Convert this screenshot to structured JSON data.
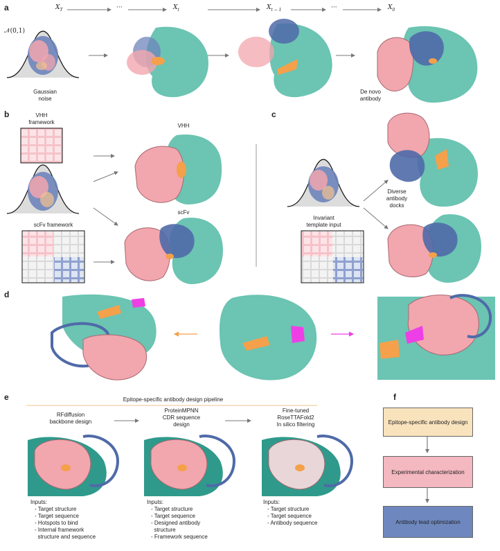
{
  "panels": {
    "a": "a",
    "b": "b",
    "c": "c",
    "d": "d",
    "e": "e",
    "f": "f"
  },
  "panel_a": {
    "x_labels": [
      {
        "base": "X",
        "sub": "T"
      },
      {
        "base": "···",
        "sub": ""
      },
      {
        "base": "X",
        "sub": "t"
      },
      {
        "base": "X",
        "sub": "t − 1"
      },
      {
        "base": "···",
        "sub": ""
      },
      {
        "base": "X",
        "sub": "0"
      }
    ],
    "normal_label": "𝒩(0,1)",
    "gaussian_caption": [
      "Gaussian",
      "noise"
    ],
    "antibody_caption": [
      "De novo",
      "antibody"
    ]
  },
  "panel_b": {
    "vhh_framework": [
      "VHH",
      "framework"
    ],
    "scfv_framework": "scFv framework",
    "vhh_title": "VHH",
    "scfv_title": "scFv"
  },
  "panel_c": {
    "template_caption": [
      "Invariant",
      "template input"
    ],
    "docks_caption": [
      "Diverse",
      "antibody",
      "docks"
    ]
  },
  "panel_e": {
    "pipeline_title": "Epitope-specific antibody design pipeline",
    "steps": [
      {
        "title": [
          "RFdiffusion",
          "backbone design"
        ],
        "inputs_title": "Inputs:",
        "inputs": [
          "- Target structure",
          "- Target sequence",
          "- Hotspots to bind",
          "- Internal framework",
          "  structure and sequence"
        ]
      },
      {
        "title": [
          "ProteinMPNN",
          "CDR sequence",
          "design"
        ],
        "inputs_title": "Inputs:",
        "inputs": [
          "- Target structure",
          "- Target sequence",
          "- Designed antibody",
          "  structure",
          "- Framework sequence"
        ]
      },
      {
        "title": [
          "Fine-tuned",
          "RoseTTAFold2",
          "In silico filtering"
        ],
        "inputs_title": "Inputs:",
        "inputs": [
          "- Target structure",
          "- Target sequence",
          "- Antibody sequence"
        ]
      }
    ]
  },
  "panel_f": {
    "boxes": [
      {
        "label": "Epitope-specific antibody design",
        "color": "#f9e3bd"
      },
      {
        "label": "Experimental characterization",
        "color": "#f4b8c0"
      },
      {
        "label": "Antibody lead optimization",
        "color": "#6e88bf"
      }
    ]
  },
  "colors": {
    "target": "#6cc4b3",
    "heavy": "#f2a6ae",
    "light": "#4f6aa8",
    "epitope": "#f5a04a",
    "hotspot": "#ee3fe6",
    "noise": "#e0e0e0"
  }
}
